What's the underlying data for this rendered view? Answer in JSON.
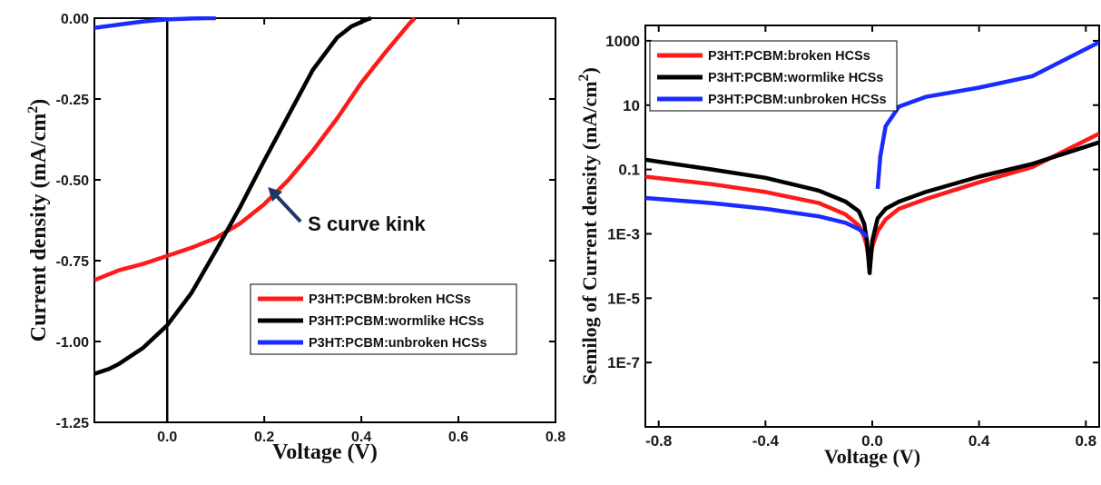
{
  "chart_data": [
    {
      "type": "line",
      "xlabel": "Voltage (V)",
      "ylabel": "Current density (mA/cm",
      "ylabel_sup": "2",
      "ylabel_close": ")",
      "xlim": [
        -0.15,
        0.8
      ],
      "ylim": [
        -1.25,
        0.0
      ],
      "xticks": [
        0.0,
        0.2,
        0.4,
        0.6,
        0.8
      ],
      "xtick_labels": [
        "0.0",
        "0.2",
        "0.4",
        "0.6",
        "0.8"
      ],
      "yticks": [
        0.0,
        -0.25,
        -0.5,
        -0.75,
        -1.0,
        -1.25
      ],
      "ytick_labels": [
        "0.00",
        "-0.25",
        "-0.50",
        "-0.75",
        "-1.00",
        "-1.25"
      ],
      "legend_position": "lower-right",
      "series": [
        {
          "name": "P3HT:PCBM:broken HCSs",
          "color": "#ff1a1a",
          "x": [
            -0.15,
            -0.1,
            -0.05,
            0.0,
            0.05,
            0.1,
            0.15,
            0.2,
            0.25,
            0.3,
            0.35,
            0.4,
            0.45,
            0.5,
            0.51
          ],
          "y": [
            -0.81,
            -0.78,
            -0.76,
            -0.735,
            -0.71,
            -0.68,
            -0.635,
            -0.575,
            -0.5,
            -0.41,
            -0.31,
            -0.2,
            -0.105,
            -0.015,
            0.0
          ]
        },
        {
          "name": "P3HT:PCBM:wormlike HCSs",
          "color": "#000000",
          "x": [
            -0.15,
            -0.12,
            -0.1,
            -0.05,
            0.0,
            0.05,
            0.1,
            0.15,
            0.2,
            0.25,
            0.3,
            0.35,
            0.38,
            0.41,
            0.42
          ],
          "y": [
            -1.1,
            -1.085,
            -1.07,
            -1.02,
            -0.95,
            -0.85,
            -0.72,
            -0.585,
            -0.44,
            -0.3,
            -0.16,
            -0.06,
            -0.025,
            -0.005,
            0.0
          ]
        },
        {
          "name": "P3HT:PCBM:unbroken HCSs",
          "color": "#1a2bff",
          "x": [
            -0.15,
            -0.1,
            -0.05,
            0.0,
            0.05,
            0.08,
            0.1
          ],
          "y": [
            -0.03,
            -0.02,
            -0.01,
            -0.004,
            -0.001,
            0.0,
            0.0
          ]
        }
      ],
      "annotation": {
        "text": "S curve kink",
        "x": 0.2,
        "y": -0.5
      }
    },
    {
      "type": "line",
      "xlabel": "Voltage (V)",
      "ylabel": "Semilog of Current density (mA/cm",
      "ylabel_sup": "2",
      "ylabel_close": ")",
      "yscale": "log",
      "xlim": [
        -0.85,
        0.85
      ],
      "ylim": [
        1e-09,
        3000
      ],
      "xticks": [
        -0.8,
        -0.4,
        0.0,
        0.4,
        0.8
      ],
      "xtick_labels": [
        "-0.8",
        "-0.4",
        "0.0",
        "0.4",
        "0.8"
      ],
      "yticks": [
        1000,
        10,
        0.1,
        0.001,
        1e-05,
        1e-07
      ],
      "ytick_labels": [
        "1000",
        "10",
        "0.1",
        "1E-3",
        "1E-5",
        "1E-7"
      ],
      "legend_position": "top-left",
      "series": [
        {
          "name": "P3HT:PCBM:broken HCSs",
          "color": "#ff1a1a",
          "x": [
            -0.85,
            -0.6,
            -0.4,
            -0.2,
            -0.1,
            -0.05,
            -0.03,
            -0.02,
            -0.01,
            0.0,
            0.02,
            0.05,
            0.1,
            0.2,
            0.4,
            0.6,
            0.85
          ],
          "y": [
            0.06,
            0.035,
            0.02,
            0.009,
            0.004,
            0.0018,
            0.0008,
            0.0004,
            0.0001,
            0.0004,
            0.0012,
            0.0028,
            0.006,
            0.012,
            0.04,
            0.12,
            1.3
          ]
        },
        {
          "name": "P3HT:PCBM:wormlike HCSs",
          "color": "#000000",
          "x": [
            -0.85,
            -0.6,
            -0.4,
            -0.2,
            -0.1,
            -0.05,
            -0.03,
            -0.02,
            -0.01,
            0.0,
            0.02,
            0.05,
            0.1,
            0.2,
            0.4,
            0.6,
            0.85
          ],
          "y": [
            0.2,
            0.1,
            0.055,
            0.022,
            0.01,
            0.005,
            0.002,
            0.0006,
            6e-05,
            0.0006,
            0.003,
            0.006,
            0.01,
            0.02,
            0.06,
            0.15,
            0.7
          ]
        },
        {
          "name": "P3HT:PCBM:unbroken HCSs",
          "color": "#1a2bff",
          "x": [
            -0.85,
            -0.6,
            -0.4,
            -0.2,
            -0.1,
            -0.05,
            -0.03,
            -0.02,
            0.02,
            0.03,
            0.05,
            0.1,
            0.2,
            0.4,
            0.6,
            0.85
          ],
          "y": [
            0.013,
            0.009,
            0.006,
            0.0035,
            0.0022,
            0.0014,
            0.001,
            0.0008,
            0.025,
            0.25,
            2.2,
            9,
            18,
            35,
            80,
            900
          ]
        }
      ]
    }
  ]
}
